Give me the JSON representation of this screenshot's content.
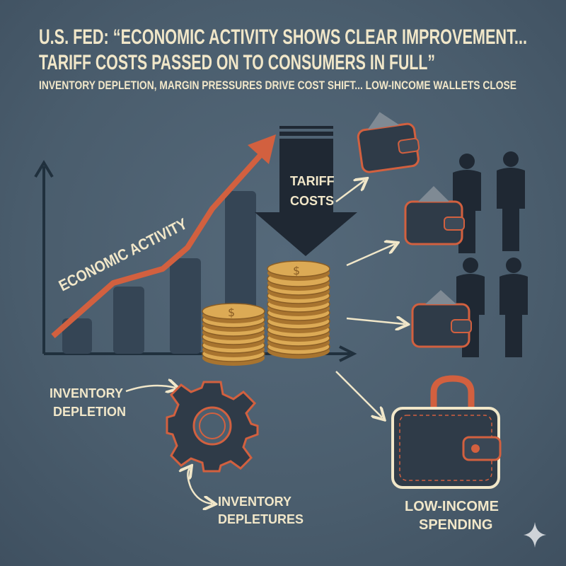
{
  "headline": {
    "line1": "U.S. FED: “ECONOMIC ACTIVITY SHOWS CLEAR IMPROVEMENT...",
    "line2": "TARIFF COSTS PASSED ON TO CONSUMERS IN FULL”",
    "subtitle": "INVENTORY DEPLETION, MARGIN PRESSURES DRIVE COST SHIFT... LOW-INCOME WALLETS CLOSE"
  },
  "labels": {
    "economic_activity": "ECONOMIC ACTIVITY",
    "tariff_line1": "TARIFF",
    "tariff_line2": "COSTS",
    "inventory_line1": "INVENTORY",
    "inventory_line2": "DEPLETION",
    "depletures_line1": "INVENTORY",
    "depletures_line2": "DEPLETURES",
    "spending_line1": "LOW-INCOME",
    "spending_line2": "SPENDING"
  },
  "icons": [
    "chart-axes-icon",
    "rising-arrow-icon",
    "down-arrow-icon",
    "coin-stack-icon",
    "wallet-icon",
    "person-silhouette-icon",
    "gear-icon",
    "sparkle-icon"
  ],
  "colors": {
    "background": "#4b5f6f",
    "text": "#f1e7c9",
    "accent": "#d2603f",
    "dark": "#2c3946",
    "coin": "#d9a650"
  }
}
